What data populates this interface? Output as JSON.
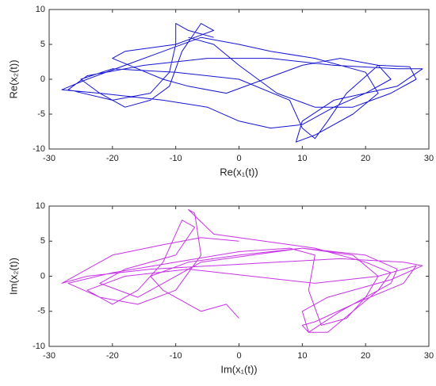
{
  "chart_data": [
    {
      "type": "line",
      "xlabel": "Re(x₁(t))",
      "ylabel": "Re(x₂(t))",
      "color": "#1414d2",
      "xlim": [
        -30,
        30
      ],
      "ylim": [
        -10,
        10
      ],
      "xticks": [
        -30,
        -20,
        -10,
        0,
        10,
        20,
        30
      ],
      "yticks": [
        -10,
        -5,
        0,
        5,
        10
      ],
      "x": [
        -4,
        -8,
        -10,
        -10,
        -11,
        -14,
        -20,
        -27,
        -24,
        -15,
        -5,
        5,
        15,
        25,
        29,
        25,
        15,
        10,
        9,
        12,
        18,
        22,
        20,
        12,
        5,
        0,
        -6,
        -12,
        -18,
        -24,
        -28,
        -22,
        -12,
        -5,
        0,
        5,
        10,
        15,
        20,
        24,
        22,
        16,
        10,
        4,
        -2,
        -8,
        -12,
        -16,
        -20,
        -18,
        -10,
        -4,
        -6,
        -9,
        -11,
        -14,
        -18,
        -22,
        -25,
        -20,
        -10,
        0,
        8,
        10,
        12,
        14,
        17,
        22,
        27,
        28,
        24,
        18,
        12,
        6,
        0,
        -4,
        -8
      ],
      "values": [
        6,
        7,
        8,
        5,
        1,
        -2,
        -3,
        -1.5,
        0.5,
        2,
        3,
        3,
        2,
        1.5,
        1.5,
        -1,
        -3,
        -6,
        -9,
        -8,
        -5,
        -2,
        1,
        3,
        4,
        5,
        6,
        4,
        2,
        0,
        -1.5,
        -2,
        -3,
        -4,
        -6,
        -7,
        -6.5,
        -4,
        -2,
        0,
        2,
        3,
        2,
        0,
        -2,
        -1,
        0,
        1.5,
        3,
        4,
        5,
        7,
        8,
        4,
        -1,
        -3,
        -4,
        -2,
        0,
        1.5,
        1,
        0,
        -3,
        -7,
        -8.5,
        -6,
        -2,
        2,
        1.8,
        0,
        -2,
        -4,
        -4,
        -2,
        2,
        5,
        6
      ]
    },
    {
      "type": "line",
      "xlabel": "Im(x₁(t))",
      "ylabel": "Im(x₂(t))",
      "color": "#c832e6",
      "xlim": [
        -30,
        30
      ],
      "ylim": [
        -10,
        10
      ],
      "xticks": [
        -30,
        -20,
        -10,
        0,
        10,
        20,
        30
      ],
      "yticks": [
        -10,
        -5,
        0,
        5,
        10
      ],
      "x": [
        0,
        -6,
        -12,
        -20,
        -28,
        -24,
        -14,
        -4,
        6,
        16,
        26,
        29,
        24,
        14,
        10,
        11,
        14,
        18,
        22,
        24,
        20,
        12,
        4,
        -4,
        -8,
        -7,
        -6,
        -10,
        -16,
        -22,
        -27,
        -20,
        -10,
        0,
        8,
        12,
        11,
        13,
        17,
        20,
        22,
        18,
        10,
        2,
        -6,
        -12,
        -16,
        -22,
        -18,
        -10,
        -7,
        -9,
        -12,
        -16,
        -20,
        -24,
        -18,
        -8,
        2,
        12,
        22,
        28,
        26,
        18,
        12,
        10,
        11,
        16,
        24,
        25,
        20,
        10,
        0,
        -8,
        -14,
        -12,
        -6,
        -2,
        0
      ],
      "values": [
        5,
        5.5,
        4.5,
        3,
        -1,
        0,
        1,
        1.5,
        2,
        2.5,
        2,
        1.5,
        -0.5,
        -3,
        -5,
        -8,
        -8,
        -5,
        -2,
        0.5,
        2,
        4,
        5,
        6,
        9.5,
        9,
        3,
        -2,
        -4,
        -3,
        -1,
        0.5,
        2,
        3.5,
        4,
        3,
        -2,
        -7,
        -6,
        -3,
        0,
        3,
        4,
        3,
        2,
        -1,
        -3,
        -1,
        1,
        3,
        7,
        8,
        2,
        -2,
        -4,
        -2,
        0,
        1,
        0,
        -1,
        0,
        1.5,
        -1,
        -4,
        -6.5,
        -7,
        -8,
        -5,
        -1,
        1,
        3,
        4,
        3,
        2,
        0,
        -2,
        -5,
        -4,
        -6
      ]
    }
  ]
}
